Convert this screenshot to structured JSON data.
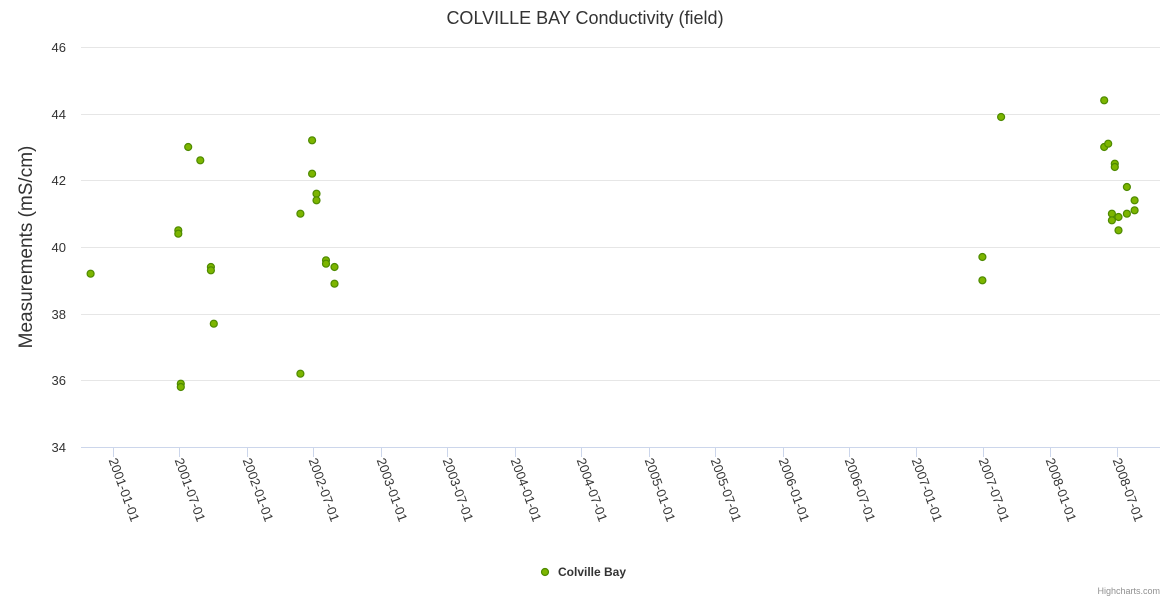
{
  "chart_data": {
    "type": "scatter",
    "title": "COLVILLE BAY Conductivity (field)",
    "ylabel": "Measurements (mS/cm)",
    "xlabel": "",
    "ylim": [
      34,
      46
    ],
    "yticks": [
      34,
      36,
      38,
      40,
      42,
      44,
      46
    ],
    "xticks": [
      "2001-01-01",
      "2001-07-01",
      "2002-01-01",
      "2002-07-01",
      "2003-01-01",
      "2003-07-01",
      "2004-01-01",
      "2004-07-01",
      "2005-01-01",
      "2005-07-01",
      "2006-01-01",
      "2006-07-01",
      "2007-01-01",
      "2007-07-01",
      "2008-01-01",
      "2008-07-01"
    ],
    "grid": true,
    "legend_position": "bottom-center",
    "series": [
      {
        "name": "Colville Bay",
        "color": "#7cb500",
        "stroke": "#4e8a00",
        "points": [
          {
            "x": "2000-11-01",
            "y": 39.2
          },
          {
            "x": "2001-06-28",
            "y": 40.5
          },
          {
            "x": "2001-06-28",
            "y": 40.4
          },
          {
            "x": "2001-07-05",
            "y": 35.9
          },
          {
            "x": "2001-07-05",
            "y": 35.8
          },
          {
            "x": "2001-07-25",
            "y": 43.0
          },
          {
            "x": "2001-08-27",
            "y": 42.6
          },
          {
            "x": "2001-09-25",
            "y": 39.4
          },
          {
            "x": "2001-09-25",
            "y": 39.3
          },
          {
            "x": "2001-10-03",
            "y": 37.7
          },
          {
            "x": "2002-05-27",
            "y": 41.0
          },
          {
            "x": "2002-05-27",
            "y": 36.2
          },
          {
            "x": "2002-06-28",
            "y": 43.2
          },
          {
            "x": "2002-06-28",
            "y": 42.2
          },
          {
            "x": "2002-07-10",
            "y": 41.6
          },
          {
            "x": "2002-07-10",
            "y": 41.4
          },
          {
            "x": "2002-08-05",
            "y": 39.6
          },
          {
            "x": "2002-08-05",
            "y": 39.5
          },
          {
            "x": "2002-08-28",
            "y": 39.4
          },
          {
            "x": "2002-08-28",
            "y": 38.9
          },
          {
            "x": "2007-06-30",
            "y": 39.7
          },
          {
            "x": "2007-06-30",
            "y": 39.0
          },
          {
            "x": "2007-08-20",
            "y": 43.9
          },
          {
            "x": "2008-05-27",
            "y": 44.4
          },
          {
            "x": "2008-05-27",
            "y": 43.0
          },
          {
            "x": "2008-06-07",
            "y": 43.1
          },
          {
            "x": "2008-06-17",
            "y": 41.0
          },
          {
            "x": "2008-06-17",
            "y": 40.8
          },
          {
            "x": "2008-06-25",
            "y": 42.5
          },
          {
            "x": "2008-06-25",
            "y": 42.4
          },
          {
            "x": "2008-07-05",
            "y": 40.9
          },
          {
            "x": "2008-07-05",
            "y": 40.5
          },
          {
            "x": "2008-07-28",
            "y": 41.8
          },
          {
            "x": "2008-07-28",
            "y": 41.0
          },
          {
            "x": "2008-08-18",
            "y": 41.4
          },
          {
            "x": "2008-08-18",
            "y": 41.1
          }
        ]
      }
    ]
  },
  "credits": "Highcharts.com"
}
